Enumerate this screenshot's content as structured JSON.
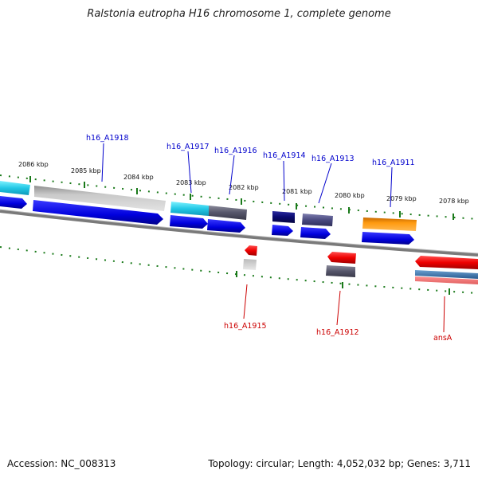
{
  "title": "Ralstonia eutropha H16 chromosome 1, complete genome",
  "accession_text": "Accession: NC_008313",
  "summary_text": "Topology: circular; Length: 4,052,032 bp; Genes: 3,711",
  "colors": {
    "tick": "#1a7a1a",
    "forward_label": "#0000cc",
    "reverse_label": "#cc0000",
    "backbone": "#7a7a7a"
  },
  "kbp_labels": [
    {
      "id": "2086",
      "text": "2086 kbp"
    },
    {
      "id": "2085",
      "text": "2085 kbp"
    },
    {
      "id": "2084",
      "text": "2084 kbp"
    },
    {
      "id": "2083",
      "text": "2083 kbp"
    },
    {
      "id": "2082",
      "text": "2082 kbp"
    },
    {
      "id": "2081",
      "text": "2081 kbp"
    },
    {
      "id": "2080",
      "text": "2080 kbp"
    },
    {
      "id": "2079",
      "text": "2079 kbp"
    },
    {
      "id": "2078",
      "text": "2078 kbp"
    }
  ],
  "gene_labels": [
    {
      "id": "h16_A1918",
      "text": "h16_A1918",
      "strand": "forward"
    },
    {
      "id": "h16_A1917",
      "text": "h16_A1917",
      "strand": "forward"
    },
    {
      "id": "h16_A1916",
      "text": "h16_A1916",
      "strand": "forward"
    },
    {
      "id": "h16_A1914",
      "text": "h16_A1914",
      "strand": "forward"
    },
    {
      "id": "h16_A1913",
      "text": "h16_A1913",
      "strand": "forward"
    },
    {
      "id": "h16_A1911",
      "text": "h16_A1911",
      "strand": "forward"
    },
    {
      "id": "h16_A1915",
      "text": "h16_A1915",
      "strand": "reverse"
    },
    {
      "id": "h16_A1912",
      "text": "h16_A1912",
      "strand": "reverse"
    },
    {
      "id": "ansA",
      "text": "ansA",
      "strand": "reverse"
    }
  ]
}
